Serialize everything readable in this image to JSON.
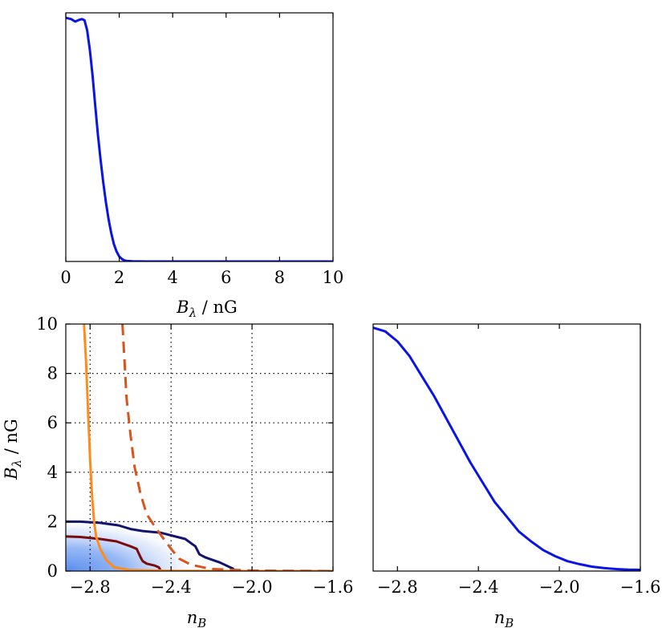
{
  "chart_data": [
    {
      "type": "line",
      "panel": "top-left",
      "title": "",
      "xlabel": {
        "main": "B",
        "sub": "λ",
        "unit": " / nG"
      },
      "ylabel": "",
      "xlim": [
        0,
        10
      ],
      "xticks": [
        0,
        2,
        4,
        6,
        8,
        10
      ],
      "xtick_labels": [
        "0",
        "2",
        "4",
        "6",
        "8",
        "10"
      ],
      "yticks_visible": false,
      "grid": false,
      "series": [
        {
          "color": "#0a14e6",
          "x": [
            0,
            0.2,
            0.35,
            0.5,
            0.6,
            0.7,
            0.8,
            0.9,
            1.0,
            1.1,
            1.2,
            1.3,
            1.4,
            1.5,
            1.6,
            1.7,
            1.8,
            1.9,
            2.0,
            2.1,
            2.2,
            2.3,
            2.5,
            3.0,
            4.0,
            6.0,
            8.0,
            10.0
          ],
          "y": [
            0.98,
            0.975,
            0.965,
            0.972,
            0.975,
            0.97,
            0.93,
            0.85,
            0.75,
            0.63,
            0.51,
            0.41,
            0.32,
            0.24,
            0.17,
            0.115,
            0.07,
            0.04,
            0.02,
            0.01,
            0.004,
            0.002,
            0.0005,
            0,
            0,
            0,
            0,
            0
          ]
        }
      ]
    },
    {
      "type": "line",
      "panel": "bottom-left",
      "title": "",
      "xlabel": {
        "main": "n",
        "sub": "B",
        "unit": ""
      },
      "ylabel": {
        "main": "B",
        "sub": "λ",
        "unit": " / nG"
      },
      "xlim": [
        -2.92,
        -1.6
      ],
      "ylim": [
        0,
        10
      ],
      "xticks": [
        -2.8,
        -2.4,
        -2.0,
        -1.6
      ],
      "xtick_labels": [
        "−2.8",
        "−2.4",
        "−2.0",
        "−1.6"
      ],
      "yticks": [
        0,
        2,
        4,
        6,
        8,
        10
      ],
      "ytick_labels": [
        "0",
        "2",
        "4",
        "6",
        "8",
        "10"
      ],
      "grid": true,
      "grid_style": "dotted",
      "density_fill": {
        "color": "#4f86ee",
        "description": "posterior density"
      },
      "series": [
        {
          "style": "solid",
          "color": "#12136e",
          "x": [
            -2.92,
            -2.85,
            -2.75,
            -2.66,
            -2.6,
            -2.54,
            -2.45,
            -2.33,
            -2.28,
            -2.26,
            -2.23,
            -2.16,
            -2.09
          ],
          "y": [
            2.0,
            2.0,
            1.95,
            1.85,
            1.7,
            1.62,
            1.55,
            1.3,
            1.0,
            0.68,
            0.55,
            0.35,
            0.08
          ]
        },
        {
          "style": "solid",
          "color": "#7a0c0c",
          "x": [
            -2.92,
            -2.85,
            -2.75,
            -2.67,
            -2.6,
            -2.57,
            -2.55,
            -2.54,
            -2.52,
            -2.48,
            -2.46,
            -2.45
          ],
          "y": [
            1.4,
            1.38,
            1.3,
            1.2,
            1.0,
            0.9,
            0.55,
            0.4,
            0.3,
            0.22,
            0.15,
            0.0
          ]
        },
        {
          "style": "solid",
          "color": "#ff8c1a",
          "x": [
            -2.83,
            -2.82,
            -2.81,
            -2.8,
            -2.79,
            -2.78,
            -2.77,
            -2.75,
            -2.72,
            -2.68,
            -2.6,
            -2.4,
            -2.0,
            -1.6
          ],
          "y": [
            10.0,
            8.5,
            6.5,
            4.5,
            3.0,
            2.0,
            1.4,
            0.9,
            0.45,
            0.15,
            0.04,
            0.01,
            0.0,
            0.0
          ]
        },
        {
          "style": "dashed",
          "color": "#d9541b",
          "x": [
            -2.64,
            -2.63,
            -2.62,
            -2.6,
            -2.58,
            -2.55,
            -2.52,
            -2.48,
            -2.45,
            -2.4,
            -2.36,
            -2.3,
            -2.2,
            -2.0,
            -1.6
          ],
          "y": [
            10.0,
            8.5,
            7.0,
            5.5,
            4.2,
            3.1,
            2.3,
            1.8,
            1.45,
            0.9,
            0.5,
            0.25,
            0.08,
            0.02,
            0.0
          ]
        }
      ]
    },
    {
      "type": "line",
      "panel": "bottom-right",
      "title": "",
      "xlabel": {
        "main": "n",
        "sub": "B",
        "unit": ""
      },
      "ylabel": "",
      "xlim": [
        -2.92,
        -1.6
      ],
      "xticks": [
        -2.8,
        -2.4,
        -2.0,
        -1.6
      ],
      "xtick_labels": [
        "−2.8",
        "−2.4",
        "−2.0",
        "−1.6"
      ],
      "yticks_visible": false,
      "grid": false,
      "series": [
        {
          "color": "#0a14e6",
          "x": [
            -2.92,
            -2.86,
            -2.8,
            -2.74,
            -2.68,
            -2.62,
            -2.56,
            -2.5,
            -2.44,
            -2.38,
            -2.32,
            -2.26,
            -2.2,
            -2.14,
            -2.08,
            -2.02,
            -1.96,
            -1.9,
            -1.84,
            -1.78,
            -1.72,
            -1.66,
            -1.6
          ],
          "y": [
            0.985,
            0.97,
            0.93,
            0.87,
            0.79,
            0.71,
            0.62,
            0.53,
            0.44,
            0.36,
            0.28,
            0.22,
            0.16,
            0.12,
            0.085,
            0.06,
            0.04,
            0.028,
            0.018,
            0.012,
            0.008,
            0.006,
            0.005
          ]
        }
      ]
    }
  ]
}
